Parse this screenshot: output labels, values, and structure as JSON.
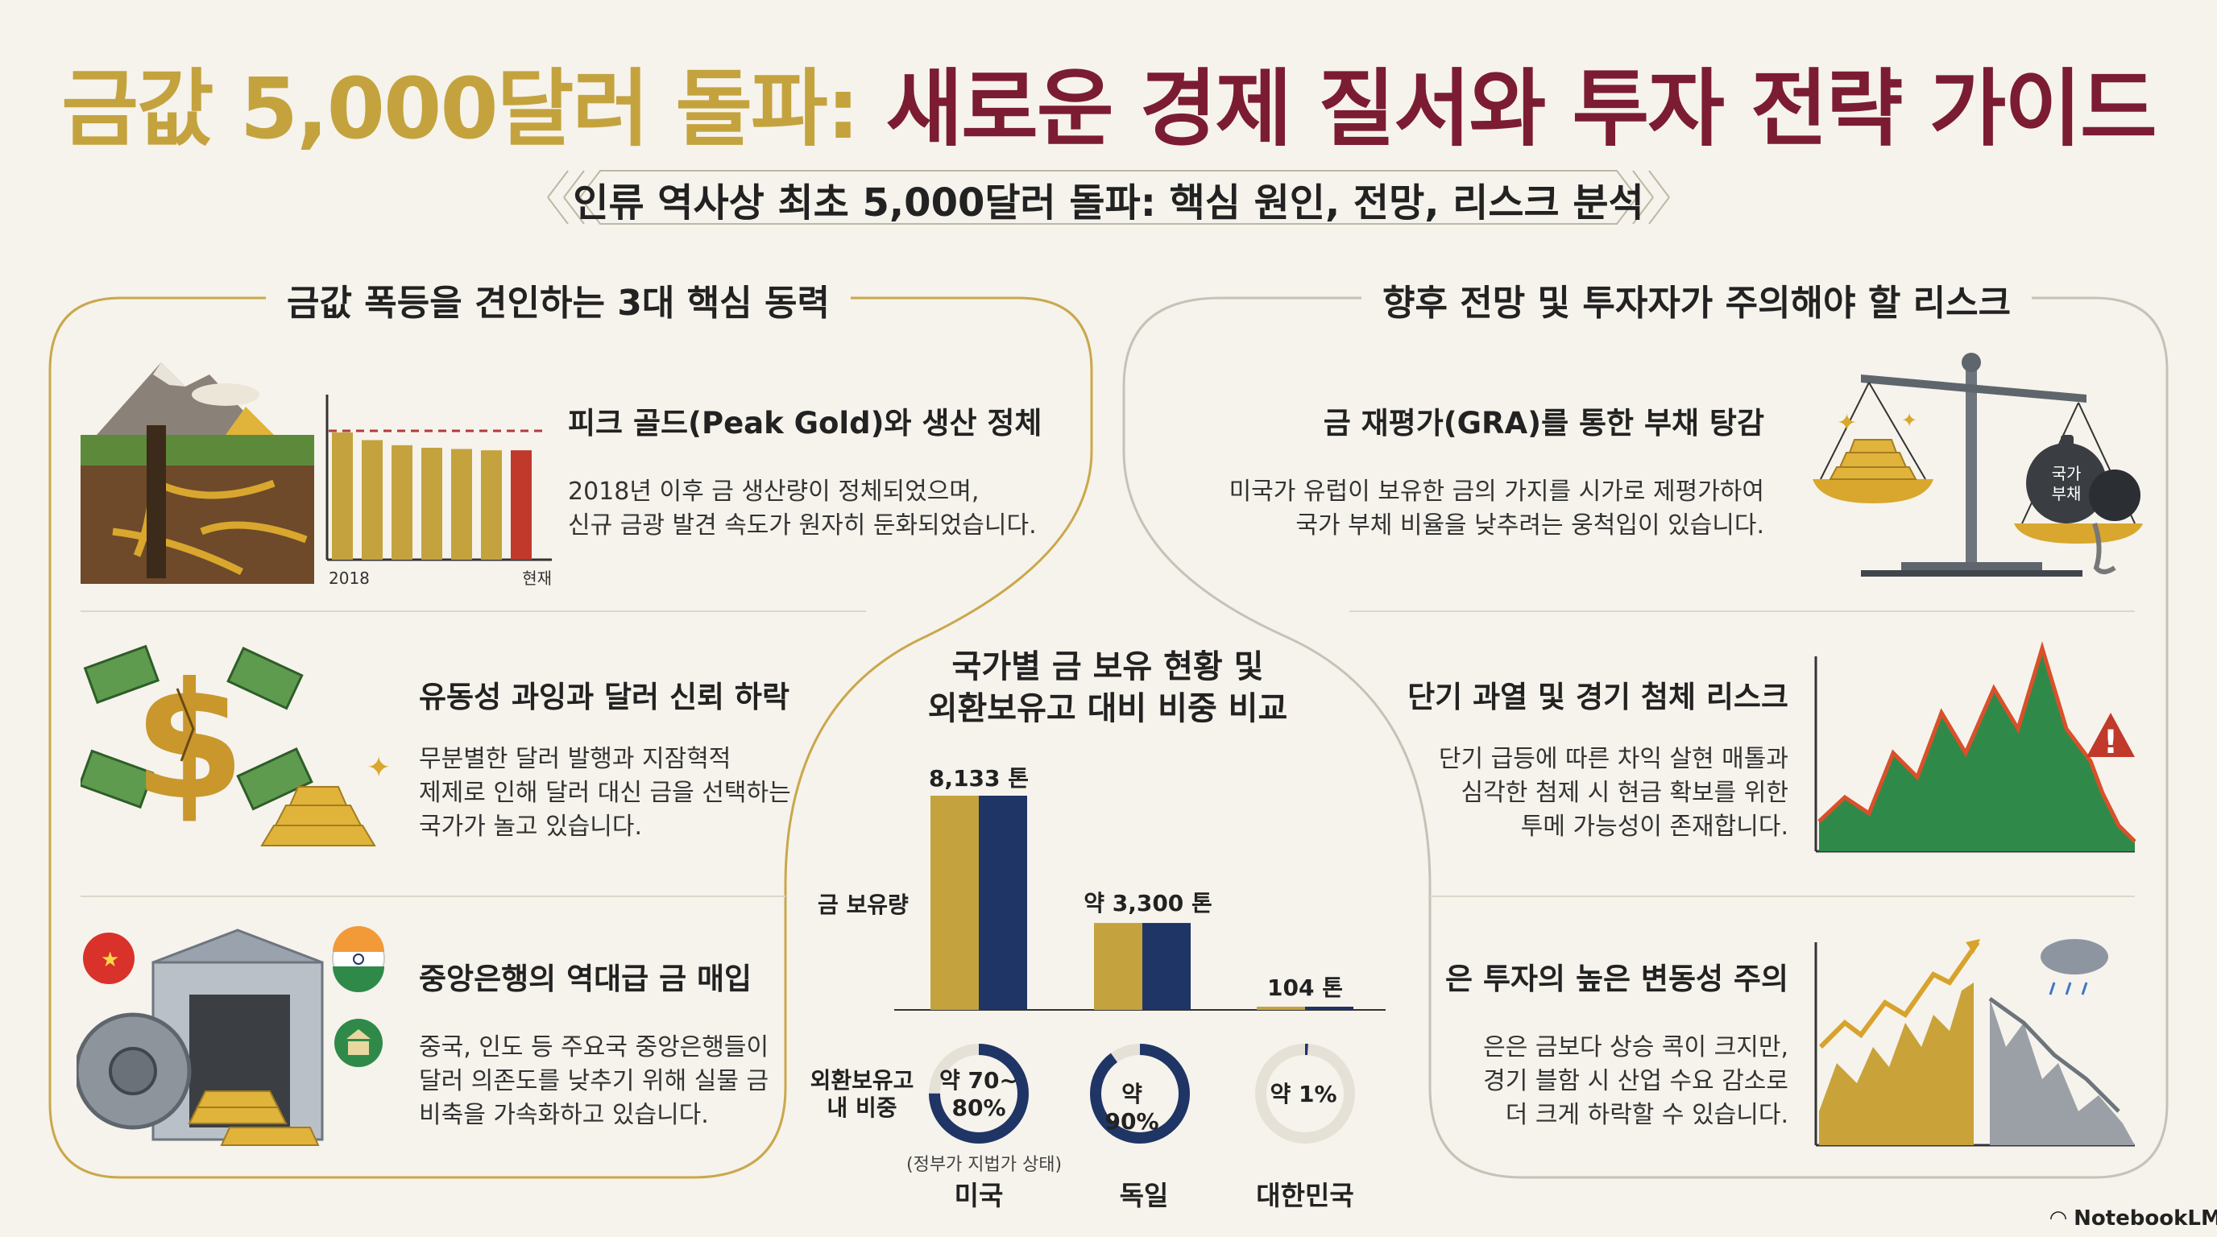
{
  "title": {
    "part1": "금값 5,000달러 돌파:",
    "part2": "새로운 경제 질서와 투자 전략 가이드"
  },
  "subtitle": "인류 역사상 최초 5,000달러 돌파: 핵심 원인, 전망, 리스크 분석",
  "left": {
    "heading": "금값 폭등을 견인하는 3대 핵심 동력",
    "items": [
      {
        "title": "피크 골드(Peak Gold)와 생산 정체",
        "lines": [
          "2018년 이후 금 생산량이 정체되었으며,",
          "신규 금광 발견 속도가 원자히 둔화되었습니다."
        ],
        "chart": {
          "start_label": "2018",
          "end_label": "현재",
          "values": [
            100,
            94,
            90,
            88,
            87,
            86,
            86
          ]
        }
      },
      {
        "title": "유동성 과잉과 달러 신뢰 하락",
        "lines": [
          "무분별한 달러 발행과 지잠혁적",
          "제제로 인해 달러 대신 금을 선택하는",
          "국가가 놀고 있습니다."
        ]
      },
      {
        "title": "중앙은행의 역대급 금 매입",
        "lines": [
          "중국, 인도 등 주요국 중앙은행들이",
          "달러 의존도를 낮추기 위해 실물 금",
          "비축을 가속화하고 있습니다."
        ]
      }
    ]
  },
  "right": {
    "heading": "향후 전망 및 투자자가 주의해야 할 리스크",
    "items": [
      {
        "title": "금 재평가(GRA)를 통한 부채 탕감",
        "lines": [
          "미국가 유럽이 보유한 금의 가지를 시가로 제평가하여",
          "국가 부체 비율을 낮추려는 웅척입이 있습니다."
        ],
        "icon_label_1": "국가",
        "icon_label_2": "부채"
      },
      {
        "title": "단기 과열 및 경기 첨체 리스크",
        "lines": [
          "단기 급등에 따른 차익 살현 매톨과",
          "심각한 첨제 시 현금 확보를 위한",
          "투메 가능성이 존재합니다."
        ]
      },
      {
        "title": "은 투자의 높은 변동성 주의",
        "lines": [
          "은은 금보다 상승 콕이 크지만,",
          "경기 블함 시 산업 수요 감소로",
          "더 크게 하락할 수 있습니다."
        ]
      }
    ]
  },
  "center": {
    "heading_1": "국가별 금 보유 현황 및",
    "heading_2": "외환보유고 대비 비중 비교",
    "y_label": "금 보유량",
    "ring_label_1": "외환보유고",
    "ring_label_2": "내 비중",
    "countries": [
      {
        "name": "미국",
        "tonnes": 8133,
        "tonnes_label": "8,133 톤",
        "ratio_pct": 75,
        "ratio_label_1": "약 70~",
        "ratio_label_2": "80%",
        "note": "(정부가 지법가 상태)"
      },
      {
        "name": "독일",
        "tonnes": 3300,
        "tonnes_label": "약 3,300 톤",
        "ratio_pct": 90,
        "ratio_label_1": "약 90%",
        "ratio_label_2": "",
        "note": ""
      },
      {
        "name": "대한민국",
        "tonnes": 104,
        "tonnes_label": "104 톤",
        "ratio_pct": 1,
        "ratio_label_1": "약 1%",
        "ratio_label_2": "",
        "note": ""
      }
    ]
  },
  "watermark": "NotebookLM",
  "colors": {
    "gold": "#c4a33e",
    "wine": "#7b1c33",
    "navy": "#1f3566",
    "green": "#2f8a4a",
    "red": "#c0392b"
  }
}
